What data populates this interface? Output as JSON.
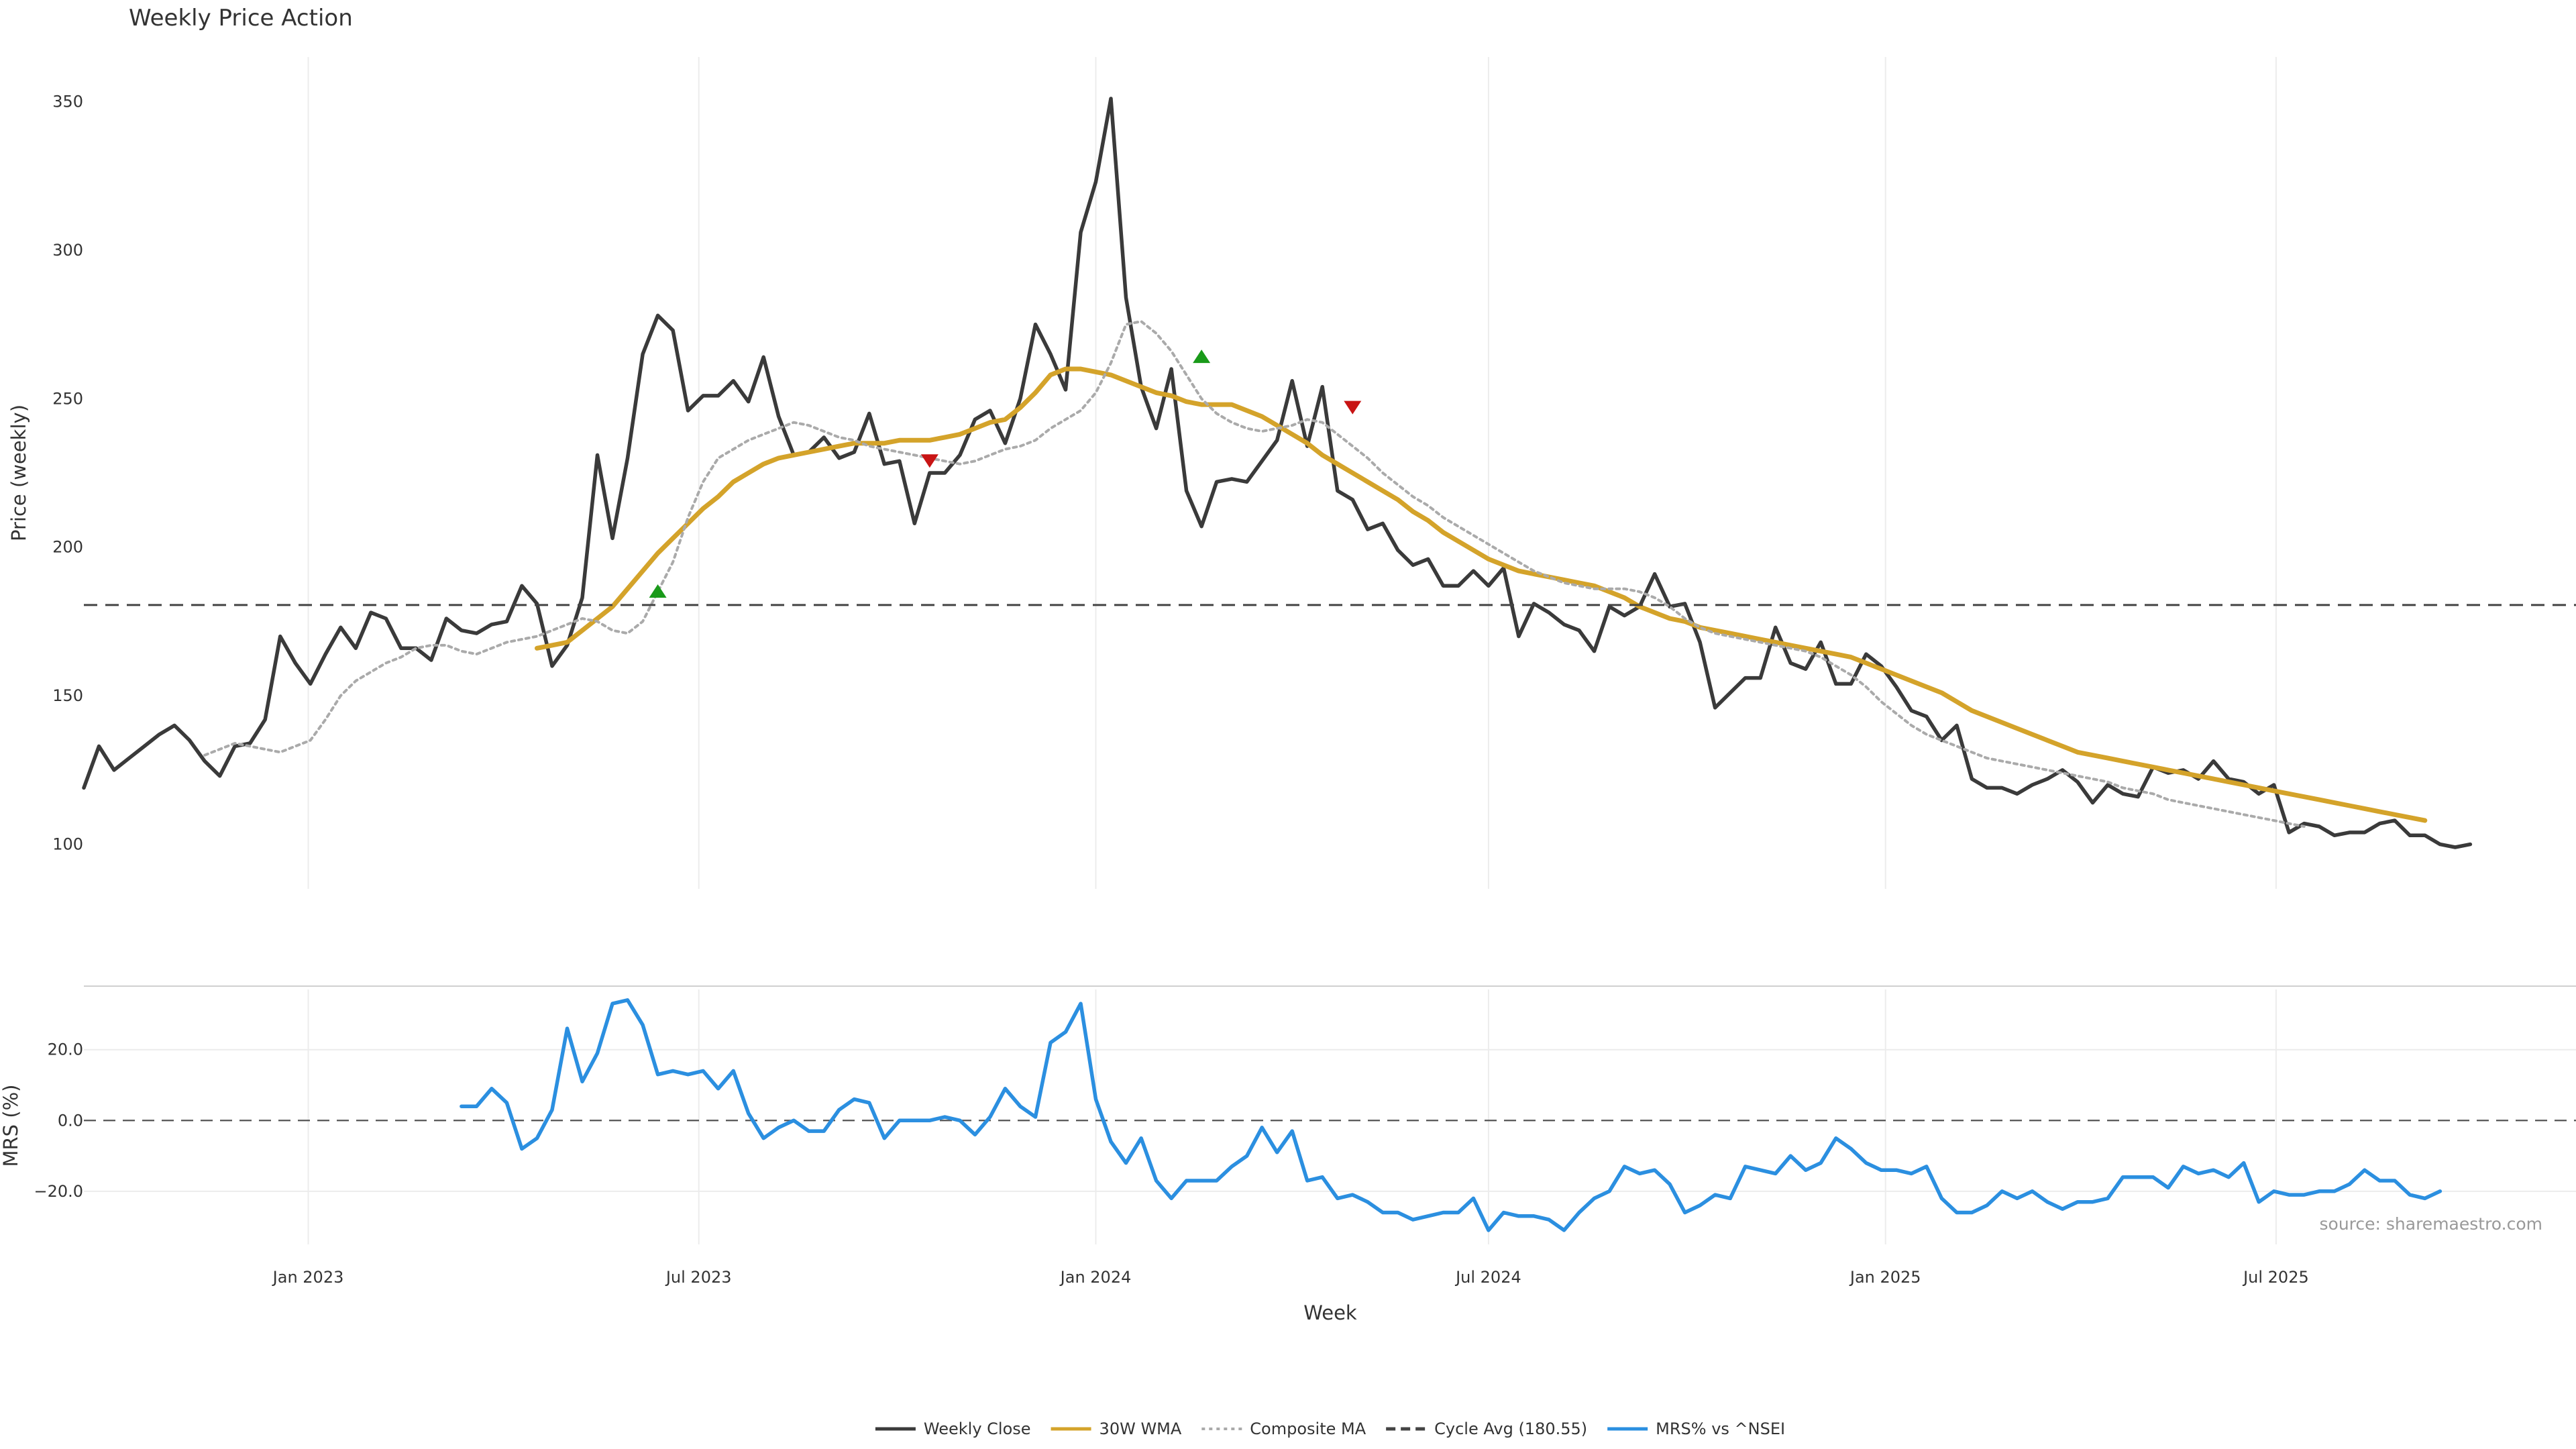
{
  "chart_data": [
    {
      "type": "line",
      "title": "Weekly Price Action",
      "ylabel": "Price (weekly)",
      "xlabel": "",
      "x_start": "2022-09-19",
      "x_end": "2025-11-17",
      "ylim": [
        85,
        365
      ],
      "y_ticks": [
        "100",
        "150",
        "200",
        "250",
        "300",
        "350"
      ],
      "x_ticks": [
        {
          "date": "2023-01-01",
          "label": "Jan 2023"
        },
        {
          "date": "2023-07-01",
          "label": "Jul 2023"
        },
        {
          "date": "2024-01-01",
          "label": "Jan 2024"
        },
        {
          "date": "2024-07-01",
          "label": "Jul 2024"
        },
        {
          "date": "2025-01-01",
          "label": "Jan 2025"
        },
        {
          "date": "2025-07-01",
          "label": "Jul 2025"
        }
      ],
      "grid": true,
      "reference_line": {
        "name": "Cycle Avg (180.55)",
        "value": 180.55
      },
      "series": [
        {
          "name": "Weekly Close",
          "color": "#3a3a3a",
          "style": "solid",
          "start": "2022-09-19",
          "values": [
            119,
            133,
            125,
            129,
            133,
            137,
            140,
            135,
            128,
            123,
            133,
            134,
            142,
            170,
            161,
            154,
            164,
            173,
            166,
            178,
            176,
            166,
            166,
            162,
            176,
            172,
            171,
            174,
            175,
            187,
            181,
            160,
            167,
            183,
            231,
            203,
            230,
            265,
            278,
            273,
            246,
            251,
            251,
            256,
            249,
            264,
            244,
            231,
            232,
            237,
            230,
            232,
            245,
            228,
            229,
            208,
            225,
            225,
            231,
            243,
            246,
            235,
            250,
            275,
            265,
            253,
            306,
            323,
            351,
            284,
            254,
            240,
            260,
            219,
            207,
            222,
            223,
            222,
            229,
            236,
            256,
            234,
            254,
            219,
            216,
            206,
            208,
            199,
            194,
            196,
            187,
            187,
            192,
            187,
            193,
            170,
            181,
            178,
            174,
            172,
            165,
            180,
            177,
            180,
            191,
            180,
            181,
            168,
            146,
            151,
            156,
            156,
            173,
            161,
            159,
            168,
            154,
            154,
            164,
            160,
            153,
            145,
            143,
            135,
            140,
            122,
            119,
            119,
            117,
            120,
            122,
            125,
            121,
            114,
            120,
            117,
            116,
            126,
            124,
            125,
            122,
            128,
            122,
            121,
            117,
            120,
            104,
            107,
            106,
            103,
            104,
            104,
            107,
            108,
            103,
            103,
            100,
            99,
            100
          ]
        },
        {
          "name": "30W WMA",
          "color": "#d4a32a",
          "style": "solid",
          "start": "2023-04-17",
          "values": [
            166,
            167,
            168,
            172,
            176,
            180,
            186,
            192,
            198,
            203,
            208,
            213,
            217,
            222,
            225,
            228,
            230,
            231,
            232,
            233,
            234,
            235,
            235,
            235,
            236,
            236,
            236,
            237,
            238,
            240,
            242,
            243,
            247,
            252,
            258,
            260,
            260,
            259,
            258,
            256,
            254,
            252,
            251,
            249,
            248,
            248,
            248,
            246,
            244,
            241,
            238,
            235,
            231,
            228,
            225,
            222,
            219,
            216,
            212,
            209,
            205,
            202,
            199,
            196,
            194,
            192,
            191,
            190,
            189,
            188,
            187,
            185,
            183,
            180,
            178,
            176,
            175,
            173,
            172,
            171,
            170,
            169,
            168,
            167,
            166,
            165,
            164,
            163,
            161,
            159,
            157,
            155,
            153,
            151,
            148,
            145,
            143,
            141,
            139,
            137,
            135,
            133,
            131,
            130,
            129,
            128,
            127,
            126,
            125,
            124,
            123,
            122,
            121,
            120,
            119,
            118,
            117,
            116,
            115,
            114,
            113,
            112,
            111,
            110,
            109,
            108
          ]
        },
        {
          "name": "Composite MA",
          "color": "#aaaaaa",
          "style": "dotted",
          "start": "2022-11-14",
          "values": [
            130,
            132,
            134,
            133,
            132,
            131,
            133,
            135,
            142,
            150,
            155,
            158,
            161,
            163,
            166,
            167,
            167,
            165,
            164,
            166,
            168,
            169,
            170,
            172,
            174,
            176,
            175,
            172,
            171,
            175,
            185,
            195,
            210,
            222,
            230,
            233,
            236,
            238,
            240,
            242,
            241,
            239,
            237,
            236,
            234,
            233,
            232,
            231,
            230,
            229,
            228,
            229,
            231,
            233,
            234,
            236,
            240,
            243,
            246,
            252,
            262,
            275,
            276,
            272,
            266,
            258,
            250,
            245,
            242,
            240,
            239,
            240,
            241,
            243,
            242,
            238,
            234,
            230,
            225,
            221,
            217,
            214,
            210,
            207,
            204,
            201,
            198,
            195,
            192,
            190,
            188,
            187,
            186,
            186,
            186,
            185,
            183,
            180,
            176,
            173,
            171,
            170,
            169,
            168,
            167,
            166,
            165,
            163,
            160,
            157,
            153,
            148,
            144,
            140,
            137,
            135,
            133,
            131,
            129,
            128,
            127,
            126,
            125,
            124,
            123,
            122,
            121,
            119,
            118,
            117,
            115,
            114,
            113,
            112,
            111,
            110,
            109,
            108,
            107,
            106
          ]
        },
        {
          "name": "Cycle Avg (180.55)",
          "color": "#444444",
          "style": "dashed",
          "values": []
        }
      ],
      "signals": [
        {
          "type": "buy",
          "date": "2023-06-12",
          "value": 183,
          "color": "#1a9a1a"
        },
        {
          "type": "sell",
          "date": "2023-10-16",
          "value": 229,
          "color": "#c81414"
        },
        {
          "type": "buy",
          "date": "2024-02-19",
          "value": 262,
          "color": "#1a9a1a"
        },
        {
          "type": "sell",
          "date": "2024-04-29",
          "value": 247,
          "color": "#c81414"
        }
      ]
    },
    {
      "type": "line",
      "ylabel": "MRS (%)",
      "xlabel": "Week",
      "ylim": [
        -35,
        37
      ],
      "y_ticks": [
        {
          "value": 20,
          "label": "20.0"
        },
        {
          "value": 0,
          "label": "0.0"
        },
        {
          "value": -20,
          "label": "−20.0"
        }
      ],
      "zero_line": true,
      "series": [
        {
          "name": "MRS% vs ^NSEI",
          "color": "#2b8fe0",
          "style": "solid",
          "start": "2023-03-13",
          "values": [
            4,
            4,
            9,
            5,
            -8,
            -5,
            3,
            26,
            11,
            19,
            33,
            34,
            27,
            13,
            14,
            13,
            14,
            9,
            14,
            2,
            -5,
            -2,
            0,
            -3,
            -3,
            3,
            6,
            5,
            -5,
            0,
            0,
            0,
            1,
            0,
            -4,
            1,
            9,
            4,
            1,
            22,
            25,
            33,
            6,
            -6,
            -12,
            -5,
            -17,
            -22,
            -17,
            -17,
            -17,
            -13,
            -10,
            -2,
            -9,
            -3,
            -17,
            -16,
            -22,
            -21,
            -23,
            -26,
            -26,
            -28,
            -27,
            -26,
            -26,
            -22,
            -31,
            -26,
            -27,
            -27,
            -28,
            -31,
            -26,
            -22,
            -20,
            -13,
            -15,
            -14,
            -18,
            -26,
            -24,
            -21,
            -22,
            -13,
            -14,
            -15,
            -10,
            -14,
            -12,
            -5,
            -8,
            -12,
            -14,
            -14,
            -15,
            -13,
            -22,
            -26,
            -26,
            -24,
            -20,
            -22,
            -20,
            -23,
            -25,
            -23,
            -23,
            -22,
            -16,
            -16,
            -16,
            -19,
            -13,
            -15,
            -14,
            -16,
            -12,
            -23,
            -20,
            -21,
            -21,
            -20,
            -20,
            -18,
            -14,
            -17,
            -17,
            -21,
            -22,
            -20
          ]
        }
      ],
      "annotations": [
        "source: sharemaestro.com"
      ]
    }
  ],
  "legend": {
    "placement": "bottom-center",
    "items": [
      {
        "label": "Weekly Close",
        "color": "#3a3a3a",
        "style": "solid"
      },
      {
        "label": "30W WMA",
        "color": "#d4a32a",
        "style": "solid"
      },
      {
        "label": "Composite MA",
        "color": "#aaaaaa",
        "style": "dotted"
      },
      {
        "label": "Cycle Avg (180.55)",
        "color": "#444444",
        "style": "dashed"
      },
      {
        "label": "MRS% vs ^NSEI",
        "color": "#2b8fe0",
        "style": "solid"
      }
    ]
  }
}
